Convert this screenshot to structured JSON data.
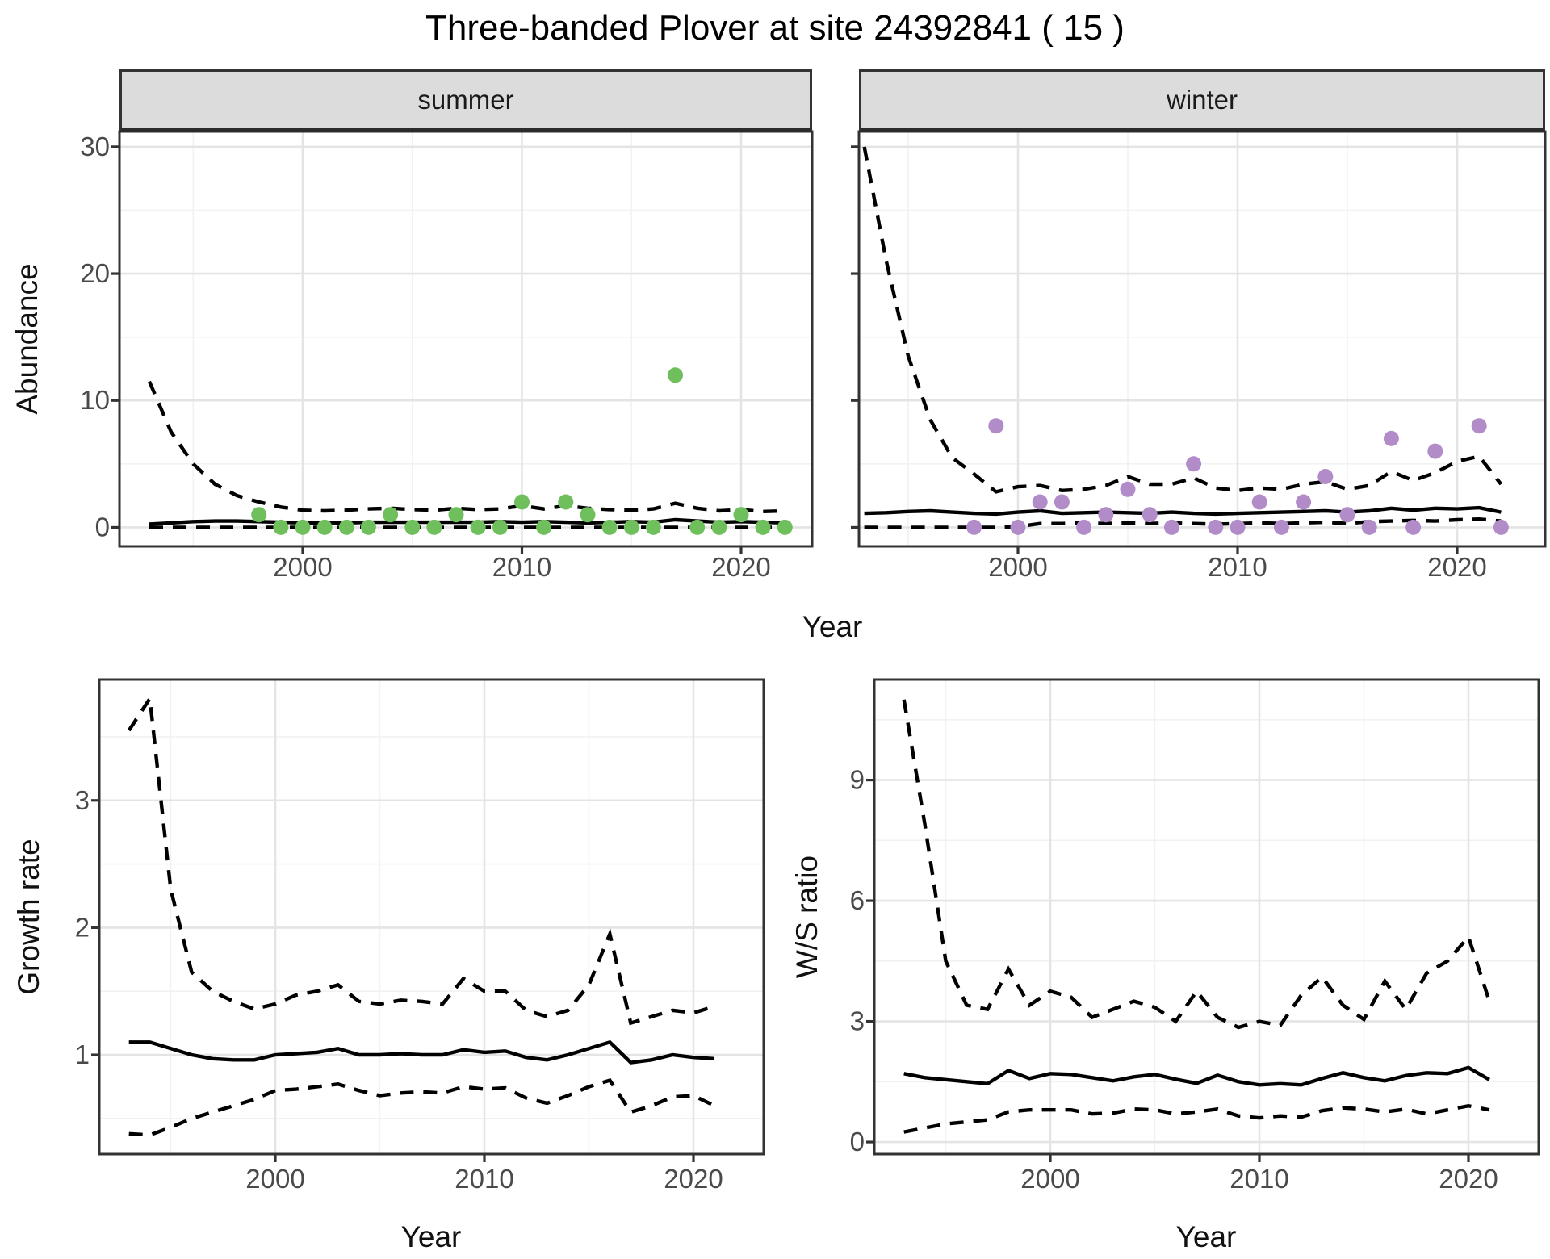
{
  "title": "Three-banded Plover at site 24392841 ( 15 )",
  "colors": {
    "summer_point": "#6FC05C",
    "winter_point": "#B28CC8",
    "line": "#000000",
    "strip_bg": "#DCDCDC",
    "panel_border": "#333333",
    "grid_major": "#E4E4E4",
    "grid_minor": "#F2F2F2",
    "tick_text": "#4A4A4A",
    "tick_mark": "#333333"
  },
  "chart_data": [
    {
      "id": "abundance_summer",
      "type": "scatter",
      "facet_label": "summer",
      "xlabel": "Year",
      "ylabel": "Abundance",
      "xlim": [
        1992.2,
        2023.3
      ],
      "ylim": [
        -1.5,
        31.2
      ],
      "xticks": [
        2000,
        2010,
        2020
      ],
      "xticks_minor": [
        1995,
        2005,
        2015
      ],
      "yticks": [
        0,
        10,
        20,
        30
      ],
      "yticks_minor": [
        5,
        15,
        25
      ],
      "legend": "none",
      "grid": true,
      "point_color": "#6FC05C",
      "points": {
        "years": [
          1998,
          1999,
          2000,
          2001,
          2002,
          2003,
          2004,
          2005,
          2006,
          2007,
          2008,
          2009,
          2010,
          2011,
          2012,
          2013,
          2014,
          2015,
          2016,
          2017,
          2018,
          2019,
          2020,
          2021,
          2022
        ],
        "values": [
          1,
          0,
          0,
          0,
          0,
          0,
          1,
          0,
          0,
          1,
          0,
          0,
          2,
          0,
          2,
          1,
          0,
          0,
          0,
          12,
          0,
          0,
          1,
          0,
          0
        ]
      },
      "mean_line": {
        "years": [
          1993,
          1994,
          1995,
          1996,
          1997,
          1998,
          1999,
          2000,
          2001,
          2002,
          2003,
          2004,
          2005,
          2006,
          2007,
          2008,
          2009,
          2010,
          2011,
          2012,
          2013,
          2014,
          2015,
          2016,
          2017,
          2018,
          2019,
          2020,
          2021,
          2022
        ],
        "values": [
          0.25,
          0.35,
          0.45,
          0.5,
          0.5,
          0.45,
          0.4,
          0.35,
          0.35,
          0.35,
          0.4,
          0.4,
          0.4,
          0.4,
          0.4,
          0.4,
          0.45,
          0.4,
          0.45,
          0.4,
          0.35,
          0.4,
          0.45,
          0.4,
          0.6,
          0.5,
          0.4,
          0.45,
          0.4,
          0.35
        ]
      },
      "ci_upper": {
        "years": [
          1993,
          1994,
          1995,
          1996,
          1997,
          1998,
          1999,
          2000,
          2001,
          2002,
          2003,
          2004,
          2005,
          2006,
          2007,
          2008,
          2009,
          2010,
          2011,
          2012,
          2013,
          2014,
          2015,
          2016,
          2017,
          2018,
          2019,
          2020,
          2021,
          2022
        ],
        "values": [
          11.5,
          7.5,
          5.0,
          3.4,
          2.5,
          2.0,
          1.6,
          1.35,
          1.3,
          1.35,
          1.45,
          1.5,
          1.4,
          1.35,
          1.5,
          1.4,
          1.45,
          1.7,
          1.45,
          1.7,
          1.5,
          1.4,
          1.35,
          1.45,
          1.9,
          1.5,
          1.3,
          1.4,
          1.25,
          1.3
        ]
      },
      "ci_lower": {
        "years": [
          1993,
          1994,
          1995,
          1996,
          1997,
          1998,
          1999,
          2000,
          2001,
          2002,
          2003,
          2004,
          2005,
          2006,
          2007,
          2008,
          2009,
          2010,
          2011,
          2012,
          2013,
          2014,
          2015,
          2016,
          2017,
          2018,
          2019,
          2020,
          2021,
          2022
        ],
        "values": [
          0,
          0,
          0,
          0,
          0,
          0,
          0,
          0,
          0,
          0,
          0,
          0,
          0,
          0,
          0,
          0,
          0,
          0,
          0,
          0,
          0,
          0,
          0,
          0,
          0,
          0,
          0,
          0,
          0,
          0
        ]
      }
    },
    {
      "id": "abundance_winter",
      "type": "scatter",
      "facet_label": "winter",
      "xlabel": "Year",
      "ylabel": "Abundance",
      "xlim": [
        1992.8,
        2024.0
      ],
      "ylim": [
        -1.5,
        31.2
      ],
      "xticks": [
        2000,
        2010,
        2020
      ],
      "xticks_minor": [
        1995,
        2005,
        2015
      ],
      "yticks": [
        0,
        10,
        20,
        30
      ],
      "yticks_minor": [
        5,
        15,
        25
      ],
      "legend": "none",
      "grid": true,
      "point_color": "#B28CC8",
      "points": {
        "years": [
          1998,
          1999,
          2000,
          2001,
          2002,
          2003,
          2004,
          2005,
          2006,
          2007,
          2008,
          2009,
          2010,
          2011,
          2012,
          2013,
          2014,
          2015,
          2016,
          2017,
          2018,
          2019,
          2020,
          2021,
          2022
        ],
        "values": [
          0,
          8,
          0,
          2,
          2,
          0,
          1,
          3,
          1,
          0,
          5,
          0,
          0,
          2,
          0,
          2,
          4,
          1,
          0,
          7,
          0,
          6,
          null,
          8,
          0
        ]
      },
      "mean_line": {
        "years": [
          1993,
          1994,
          1995,
          1996,
          1997,
          1998,
          1999,
          2000,
          2001,
          2002,
          2003,
          2004,
          2005,
          2006,
          2007,
          2008,
          2009,
          2010,
          2011,
          2012,
          2013,
          2014,
          2015,
          2016,
          2017,
          2018,
          2019,
          2020,
          2021,
          2022
        ],
        "values": [
          1.1,
          1.15,
          1.25,
          1.3,
          1.2,
          1.1,
          1.05,
          1.2,
          1.3,
          1.1,
          1.15,
          1.2,
          1.15,
          1.1,
          1.2,
          1.1,
          1.05,
          1.1,
          1.15,
          1.2,
          1.25,
          1.3,
          1.2,
          1.3,
          1.5,
          1.35,
          1.5,
          1.45,
          1.55,
          1.2
        ]
      },
      "ci_upper": {
        "years": [
          1993,
          1994,
          1995,
          1996,
          1997,
          1998,
          1999,
          2000,
          2001,
          2002,
          2003,
          2004,
          2005,
          2006,
          2007,
          2008,
          2009,
          2010,
          2011,
          2012,
          2013,
          2014,
          2015,
          2016,
          2017,
          2018,
          2019,
          2020,
          2021,
          2022
        ],
        "values": [
          30,
          21,
          13.5,
          8.5,
          5.5,
          4.2,
          2.8,
          3.2,
          3.3,
          2.9,
          3.0,
          3.3,
          4.0,
          3.4,
          3.4,
          3.9,
          3.1,
          2.9,
          3.1,
          3.0,
          3.4,
          3.6,
          3.0,
          3.3,
          4.4,
          3.7,
          4.3,
          5.2,
          5.6,
          3.4
        ]
      },
      "ci_lower": {
        "years": [
          1993,
          1994,
          1995,
          1996,
          1997,
          1998,
          1999,
          2000,
          2001,
          2002,
          2003,
          2004,
          2005,
          2006,
          2007,
          2008,
          2009,
          2010,
          2011,
          2012,
          2013,
          2014,
          2015,
          2016,
          2017,
          2018,
          2019,
          2020,
          2021,
          2022
        ],
        "values": [
          0,
          0,
          0,
          0,
          0,
          0,
          0,
          0.05,
          0.3,
          0.3,
          0.35,
          0.3,
          0.35,
          0.3,
          0.35,
          0.3,
          0.25,
          0.3,
          0.35,
          0.3,
          0.35,
          0.4,
          0.3,
          0.45,
          0.5,
          0.55,
          0.5,
          0.6,
          0.65,
          0.5
        ]
      }
    },
    {
      "id": "growth_rate",
      "type": "line",
      "facet_label": "",
      "xlabel": "Year",
      "ylabel": "Growth rate",
      "xlim": [
        1991.6,
        2023.4
      ],
      "ylim": [
        0.22,
        3.95
      ],
      "xticks": [
        2000,
        2010,
        2020
      ],
      "xticks_minor": [
        1995,
        2005,
        2015
      ],
      "yticks": [
        1,
        2,
        3
      ],
      "yticks_minor": [
        0.5,
        1.5,
        2.5,
        3.5
      ],
      "legend": "none",
      "grid": true,
      "mean_line": {
        "years": [
          1993,
          1994,
          1995,
          1996,
          1997,
          1998,
          1999,
          2000,
          2001,
          2002,
          2003,
          2004,
          2005,
          2006,
          2007,
          2008,
          2009,
          2010,
          2011,
          2012,
          2013,
          2014,
          2015,
          2016,
          2017,
          2018,
          2019,
          2020,
          2021
        ],
        "values": [
          1.1,
          1.1,
          1.05,
          1.0,
          0.97,
          0.96,
          0.96,
          1.0,
          1.01,
          1.02,
          1.05,
          1.0,
          1.0,
          1.01,
          1.0,
          1.0,
          1.04,
          1.02,
          1.03,
          0.98,
          0.96,
          1.0,
          1.05,
          1.1,
          0.94,
          0.96,
          1.0,
          0.98,
          0.97
        ]
      },
      "ci_upper": {
        "years": [
          1993,
          1994,
          1995,
          1996,
          1997,
          1998,
          1999,
          2000,
          2001,
          2002,
          2003,
          2004,
          2005,
          2006,
          2007,
          2008,
          2009,
          2010,
          2011,
          2012,
          2013,
          2014,
          2015,
          2016,
          2017,
          2018,
          2019,
          2020,
          2021
        ],
        "values": [
          3.55,
          3.8,
          2.3,
          1.65,
          1.5,
          1.42,
          1.36,
          1.4,
          1.47,
          1.5,
          1.55,
          1.42,
          1.4,
          1.43,
          1.42,
          1.4,
          1.6,
          1.5,
          1.5,
          1.35,
          1.3,
          1.35,
          1.55,
          1.95,
          1.25,
          1.3,
          1.35,
          1.33,
          1.38
        ]
      },
      "ci_lower": {
        "years": [
          1993,
          1994,
          1995,
          1996,
          1997,
          1998,
          1999,
          2000,
          2001,
          2002,
          2003,
          2004,
          2005,
          2006,
          2007,
          2008,
          2009,
          2010,
          2011,
          2012,
          2013,
          2014,
          2015,
          2016,
          2017,
          2018,
          2019,
          2020,
          2021
        ],
        "values": [
          0.38,
          0.37,
          0.43,
          0.5,
          0.55,
          0.6,
          0.65,
          0.72,
          0.73,
          0.75,
          0.77,
          0.72,
          0.68,
          0.7,
          0.71,
          0.7,
          0.75,
          0.73,
          0.74,
          0.66,
          0.62,
          0.68,
          0.75,
          0.8,
          0.55,
          0.6,
          0.67,
          0.68,
          0.6
        ]
      }
    },
    {
      "id": "ws_ratio",
      "type": "line",
      "facet_label": "",
      "xlabel": "Year",
      "ylabel": "W/S ratio",
      "xlim": [
        1991.6,
        2023.4
      ],
      "ylim": [
        -0.3,
        11.5
      ],
      "xticks": [
        2000,
        2010,
        2020
      ],
      "xticks_minor": [
        1995,
        2005,
        2015
      ],
      "yticks": [
        0,
        3,
        6,
        9
      ],
      "yticks_minor": [
        1.5,
        4.5,
        7.5,
        10.5
      ],
      "legend": "none",
      "grid": true,
      "mean_line": {
        "years": [
          1993,
          1994,
          1995,
          1996,
          1997,
          1998,
          1999,
          2000,
          2001,
          2002,
          2003,
          2004,
          2005,
          2006,
          2007,
          2008,
          2009,
          2010,
          2011,
          2012,
          2013,
          2014,
          2015,
          2016,
          2017,
          2018,
          2019,
          2020,
          2021
        ],
        "values": [
          1.7,
          1.6,
          1.55,
          1.5,
          1.45,
          1.78,
          1.58,
          1.7,
          1.68,
          1.6,
          1.52,
          1.62,
          1.68,
          1.56,
          1.46,
          1.66,
          1.5,
          1.42,
          1.45,
          1.42,
          1.58,
          1.72,
          1.6,
          1.52,
          1.65,
          1.72,
          1.7,
          1.85,
          1.55
        ]
      },
      "ci_upper": {
        "years": [
          1993,
          1994,
          1995,
          1996,
          1997,
          1998,
          1999,
          2000,
          2001,
          2002,
          2003,
          2004,
          2005,
          2006,
          2007,
          2008,
          2009,
          2010,
          2011,
          2012,
          2013,
          2014,
          2015,
          2016,
          2017,
          2018,
          2019,
          2020,
          2021
        ],
        "values": [
          11.0,
          7.9,
          4.5,
          3.4,
          3.3,
          4.3,
          3.4,
          3.75,
          3.6,
          3.1,
          3.3,
          3.5,
          3.35,
          3.0,
          3.75,
          3.1,
          2.85,
          3.0,
          2.9,
          3.65,
          4.1,
          3.4,
          3.05,
          4.0,
          3.3,
          4.2,
          4.5,
          5.1,
          3.5
        ]
      },
      "ci_lower": {
        "years": [
          1993,
          1994,
          1995,
          1996,
          1997,
          1998,
          1999,
          2000,
          2001,
          2002,
          2003,
          2004,
          2005,
          2006,
          2007,
          2008,
          2009,
          2010,
          2011,
          2012,
          2013,
          2014,
          2015,
          2016,
          2017,
          2018,
          2019,
          2020,
          2021
        ],
        "values": [
          0.25,
          0.35,
          0.45,
          0.5,
          0.55,
          0.75,
          0.8,
          0.8,
          0.8,
          0.7,
          0.72,
          0.82,
          0.8,
          0.7,
          0.75,
          0.82,
          0.65,
          0.6,
          0.65,
          0.62,
          0.78,
          0.85,
          0.82,
          0.75,
          0.82,
          0.7,
          0.8,
          0.9,
          0.8
        ]
      }
    }
  ]
}
